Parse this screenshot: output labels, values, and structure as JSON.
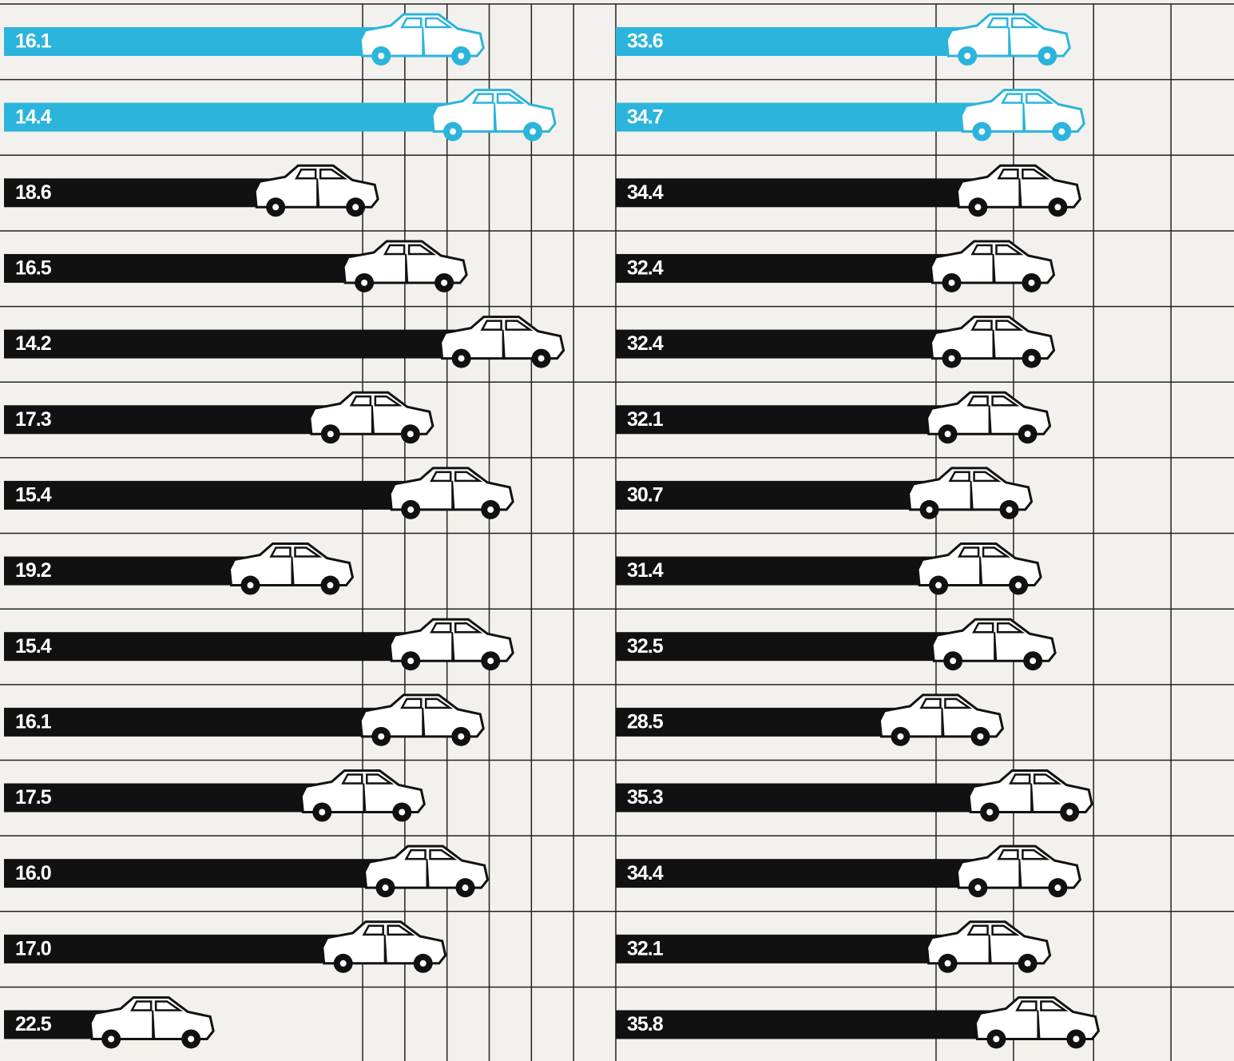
{
  "chart_data": [
    {
      "type": "bar",
      "orientation": "horizontal",
      "values": [
        16.1,
        14.4,
        18.6,
        16.5,
        14.2,
        17.3,
        15.4,
        19.2,
        15.4,
        16.1,
        17.5,
        16.0,
        17.0,
        22.5
      ],
      "value_labels": [
        "16.1",
        "14.4",
        "18.6",
        "16.5",
        "14.2",
        "17.3",
        "15.4",
        "19.2",
        "15.4",
        "16.1",
        "17.5",
        "16.0",
        "17.0",
        "22.5"
      ],
      "colors": [
        "#2bb4dc",
        "#2bb4dc",
        "#111111",
        "#111111",
        "#111111",
        "#111111",
        "#111111",
        "#111111",
        "#111111",
        "#111111",
        "#111111",
        "#111111",
        "#111111",
        "#111111"
      ],
      "xlim": [
        27.5,
        13
      ],
      "xticks": [
        19,
        18,
        17,
        16,
        15,
        14
      ],
      "grid": true
    },
    {
      "type": "bar",
      "orientation": "horizontal",
      "values": [
        33.6,
        34.7,
        34.4,
        32.4,
        32.4,
        32.1,
        30.7,
        31.4,
        32.5,
        28.5,
        35.3,
        34.4,
        32.1,
        35.8
      ],
      "value_labels": [
        "33.6",
        "34.7",
        "34.4",
        "32.4",
        "32.4",
        "32.1",
        "30.7",
        "31.4",
        "32.5",
        "28.5",
        "35.3",
        "34.4",
        "32.1",
        "35.8"
      ],
      "colors": [
        "#2bb4dc",
        "#2bb4dc",
        "#111111",
        "#111111",
        "#111111",
        "#111111",
        "#111111",
        "#111111",
        "#111111",
        "#111111",
        "#111111",
        "#111111",
        "#111111",
        "#111111"
      ],
      "xlim": [
        -1.1,
        46
      ],
      "xticks": [
        23.3,
        29.2,
        35.3,
        41.2
      ],
      "grid": true
    }
  ]
}
